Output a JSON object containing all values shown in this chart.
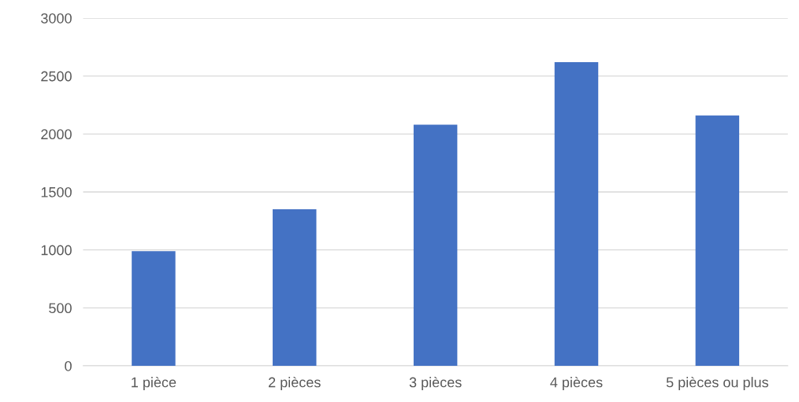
{
  "chart_data": {
    "type": "bar",
    "categories": [
      "1 pièce",
      "2 pièces",
      "3 pièces",
      "4 pièces",
      "5 pièces ou plus"
    ],
    "values": [
      990,
      1350,
      2080,
      2620,
      2160
    ],
    "color": "#4472c4",
    "ylim": [
      0,
      3000
    ],
    "yticks": [
      0,
      500,
      1000,
      1500,
      2000,
      2500,
      3000
    ],
    "grid": "y"
  }
}
